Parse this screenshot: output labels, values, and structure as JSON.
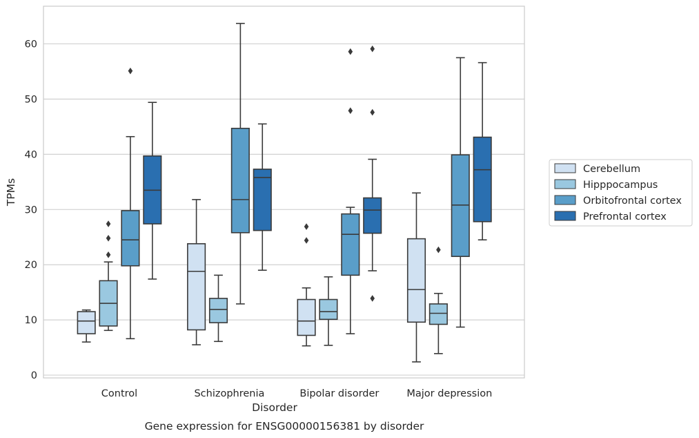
{
  "chart_data": {
    "type": "box",
    "caption": "Gene expression for ENSG00000156381 by disorder",
    "xlabel": "Disorder",
    "ylabel": "TPMs",
    "ylim": [
      -0.5,
      67
    ],
    "yticks": [
      0,
      10,
      20,
      30,
      40,
      50,
      60
    ],
    "grid": "horizontal",
    "legend_position": "right",
    "categories": [
      "Control",
      "Schizophrenia",
      "Bipolar disorder",
      "Major depression"
    ],
    "series": [
      {
        "name": "Cerebellum",
        "color": "#d0e1f2",
        "boxes": [
          {
            "whislo": 6.0,
            "q1": 7.5,
            "med": 9.8,
            "q3": 11.5,
            "whishi": 11.8,
            "fliers": []
          },
          {
            "whislo": 5.5,
            "q1": 8.2,
            "med": 18.8,
            "q3": 23.8,
            "whishi": 31.8,
            "fliers": []
          },
          {
            "whislo": 5.3,
            "q1": 7.2,
            "med": 9.8,
            "q3": 13.7,
            "whishi": 15.8,
            "fliers": [
              24.4,
              26.9
            ]
          },
          {
            "whislo": 2.4,
            "q1": 9.6,
            "med": 15.5,
            "q3": 24.7,
            "whishi": 33.0,
            "fliers": []
          }
        ]
      },
      {
        "name": "Hipppocampus",
        "color": "#9ac8e0",
        "boxes": [
          {
            "whislo": 8.1,
            "q1": 8.9,
            "med": 13.0,
            "q3": 17.1,
            "whishi": 20.5,
            "fliers": [
              21.8,
              24.8,
              27.4
            ]
          },
          {
            "whislo": 6.1,
            "q1": 9.5,
            "med": 11.9,
            "q3": 13.9,
            "whishi": 18.1,
            "fliers": []
          },
          {
            "whislo": 5.4,
            "q1": 10.1,
            "med": 11.5,
            "q3": 13.7,
            "whishi": 17.8,
            "fliers": []
          },
          {
            "whislo": 3.9,
            "q1": 9.2,
            "med": 11.2,
            "q3": 12.9,
            "whishi": 14.8,
            "fliers": [
              22.7
            ]
          }
        ]
      },
      {
        "name": "Orbitofrontal cortex",
        "color": "#5a9ec9",
        "boxes": [
          {
            "whislo": 6.6,
            "q1": 19.8,
            "med": 24.5,
            "q3": 29.8,
            "whishi": 43.2,
            "fliers": [
              55.1
            ]
          },
          {
            "whislo": 12.9,
            "q1": 25.8,
            "med": 31.8,
            "q3": 44.7,
            "whishi": 63.7,
            "fliers": []
          },
          {
            "whislo": 7.5,
            "q1": 18.1,
            "med": 25.5,
            "q3": 29.2,
            "whishi": 30.4,
            "fliers": [
              47.9,
              58.6
            ]
          },
          {
            "whislo": 8.7,
            "q1": 21.5,
            "med": 30.8,
            "q3": 39.9,
            "whishi": 57.5,
            "fliers": []
          }
        ]
      },
      {
        "name": "Prefrontal cortex",
        "color": "#2a6fb0",
        "boxes": [
          {
            "whislo": 17.4,
            "q1": 27.4,
            "med": 33.5,
            "q3": 39.7,
            "whishi": 49.4,
            "fliers": []
          },
          {
            "whislo": 19.0,
            "q1": 26.2,
            "med": 35.8,
            "q3": 37.3,
            "whishi": 45.5,
            "fliers": []
          },
          {
            "whislo": 18.9,
            "q1": 25.7,
            "med": 29.9,
            "q3": 32.1,
            "whishi": 39.1,
            "fliers": [
              13.9,
              47.6,
              59.1
            ]
          },
          {
            "whislo": 24.5,
            "q1": 27.8,
            "med": 37.2,
            "q3": 43.1,
            "whishi": 56.6,
            "fliers": []
          }
        ]
      }
    ],
    "colors": {
      "edge": "#3a3a3a",
      "grid": "#cccccc",
      "frame": "#cccccc",
      "text": "#262626"
    }
  }
}
